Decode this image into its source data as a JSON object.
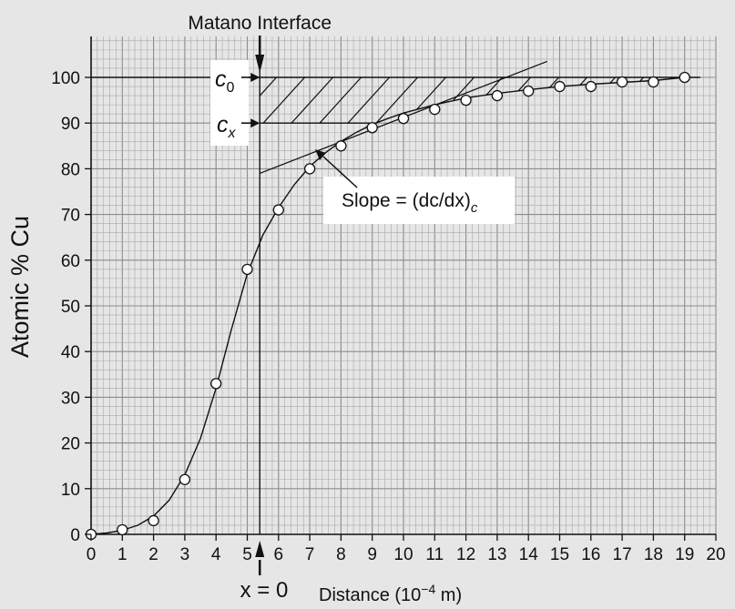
{
  "chart_data": {
    "type": "scatter",
    "xlabel": "Distance (10",
    "xlabel_exp": "−4",
    "xlabel_unit": " m)",
    "ylabel": "Atomic % Cu",
    "xlim": [
      0,
      20
    ],
    "ylim": [
      0,
      100
    ],
    "x_ticks": [
      0,
      1,
      2,
      3,
      4,
      5,
      6,
      7,
      8,
      9,
      10,
      11,
      12,
      13,
      14,
      15,
      16,
      17,
      18,
      19,
      20
    ],
    "y_ticks": [
      0,
      10,
      20,
      30,
      40,
      50,
      60,
      70,
      80,
      90,
      100
    ],
    "grid": true,
    "series": [
      {
        "marker": "open-circle",
        "x": [
          0,
          1,
          2,
          3,
          4,
          5,
          6,
          7,
          8,
          9,
          10,
          11,
          12,
          13,
          14,
          15,
          16,
          17,
          18,
          19
        ],
        "y": [
          0,
          1,
          3,
          12,
          33,
          58,
          71,
          80,
          85,
          89,
          91,
          93,
          95,
          96,
          97,
          98,
          98,
          99,
          99,
          100
        ]
      }
    ],
    "fitted_curve": {
      "x": [
        0,
        0.5,
        1,
        1.5,
        2,
        2.5,
        3,
        3.5,
        4,
        4.5,
        5,
        5.5,
        6,
        6.5,
        7,
        7.5,
        8,
        8.5,
        9,
        9.5,
        10,
        11,
        12,
        13,
        14,
        15,
        16,
        17,
        18,
        19
      ],
      "y": [
        0,
        0.3,
        0.9,
        2.0,
        4.0,
        7.5,
        13,
        21,
        32,
        45,
        57,
        65.5,
        71.5,
        76.5,
        80.5,
        83.5,
        86,
        88,
        89.7,
        91,
        92.2,
        94,
        95.5,
        96.5,
        97.3,
        98,
        98.5,
        98.9,
        99.3,
        100
      ]
    },
    "matano_interface_x": 5.4,
    "c0_level": 100,
    "cx_level": 90,
    "tangent_line": {
      "x": [
        5.4,
        14.6
      ],
      "y": [
        79,
        103.5
      ]
    },
    "annotations": {
      "matano": "Matano Interface",
      "c0": "c",
      "c0_sub": "0",
      "cx": "c",
      "cx_sub": "x",
      "slope": "Slope = (dc/dx)",
      "slope_sub": "c",
      "x_zero": "x = 0"
    },
    "colors": {
      "background": "#e6e6e6",
      "grid_minor": "#a8a8a8",
      "grid_major": "#8c8c8c",
      "ink": "#111111",
      "label_box": "#ffffff"
    }
  }
}
